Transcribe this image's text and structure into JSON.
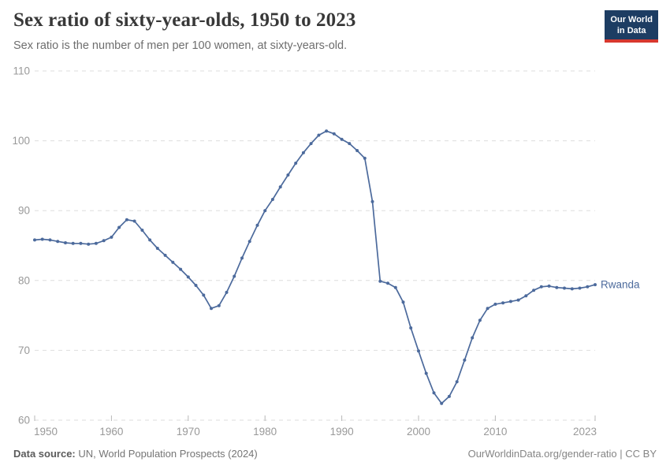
{
  "header": {
    "title": "Sex ratio of sixty-year-olds, 1950 to 2023",
    "subtitle": "Sex ratio is the number of men per 100 women, at sixty-years-old.",
    "logo": {
      "line1": "Our World",
      "line2": "in Data"
    }
  },
  "chart_data": {
    "type": "line",
    "title": "Sex ratio of sixty-year-olds, 1950 to 2023",
    "subtitle": "Sex ratio is the number of men per 100 women, at sixty-years-old.",
    "xlabel": "",
    "ylabel": "",
    "xlim": [
      1950,
      2023
    ],
    "ylim": [
      60,
      110
    ],
    "xticks": [
      1950,
      1960,
      1970,
      1980,
      1990,
      2000,
      2010,
      2023
    ],
    "yticks": [
      60,
      70,
      80,
      90,
      100,
      110
    ],
    "grid": "horizontal-dashed",
    "legend_position": "end-of-line-label",
    "series": [
      {
        "name": "Rwanda",
        "color": "#4C6A9C",
        "x": [
          1950,
          1951,
          1952,
          1953,
          1954,
          1955,
          1956,
          1957,
          1958,
          1959,
          1960,
          1961,
          1962,
          1963,
          1964,
          1965,
          1966,
          1967,
          1968,
          1969,
          1970,
          1971,
          1972,
          1973,
          1974,
          1975,
          1976,
          1977,
          1978,
          1979,
          1980,
          1981,
          1982,
          1983,
          1984,
          1985,
          1986,
          1987,
          1988,
          1989,
          1990,
          1991,
          1992,
          1993,
          1994,
          1995,
          1996,
          1997,
          1998,
          1999,
          2000,
          2001,
          2002,
          2003,
          2004,
          2005,
          2006,
          2007,
          2008,
          2009,
          2010,
          2011,
          2012,
          2013,
          2014,
          2015,
          2016,
          2017,
          2018,
          2019,
          2020,
          2021,
          2022,
          2023
        ],
        "values": [
          85.8,
          85.9,
          85.8,
          85.6,
          85.4,
          85.3,
          85.3,
          85.2,
          85.3,
          85.7,
          86.2,
          87.6,
          88.7,
          88.5,
          87.2,
          85.8,
          84.6,
          83.6,
          82.6,
          81.6,
          80.5,
          79.3,
          77.9,
          76.0,
          76.4,
          78.3,
          80.6,
          83.2,
          85.6,
          87.9,
          90.0,
          91.6,
          93.4,
          95.1,
          96.8,
          98.3,
          99.6,
          100.8,
          101.4,
          101.0,
          100.2,
          99.6,
          98.6,
          97.5,
          91.3,
          79.9,
          79.6,
          79.0,
          76.9,
          73.2,
          69.9,
          66.7,
          63.9,
          62.4,
          63.4,
          65.5,
          68.6,
          71.8,
          74.3,
          76.0,
          76.6,
          76.8,
          77.0,
          77.2,
          77.8,
          78.6,
          79.1,
          79.2,
          79.0,
          78.9,
          78.8,
          78.9,
          79.1,
          79.4
        ]
      }
    ]
  },
  "footer": {
    "datasource_label": "Data source:",
    "datasource_value": "UN, World Population Prospects (2024)",
    "credit": "OurWorldinData.org/gender-ratio | CC BY"
  },
  "colors": {
    "line": "#4C6A9C",
    "grid": "#dedede",
    "tick_text": "#999999",
    "axis_tick_mark": "#b8b8b8",
    "title_text": "#383838",
    "subtitle_text": "#6e6e6e",
    "logo_navy": "#1d3d63",
    "logo_red": "#d7382e"
  }
}
